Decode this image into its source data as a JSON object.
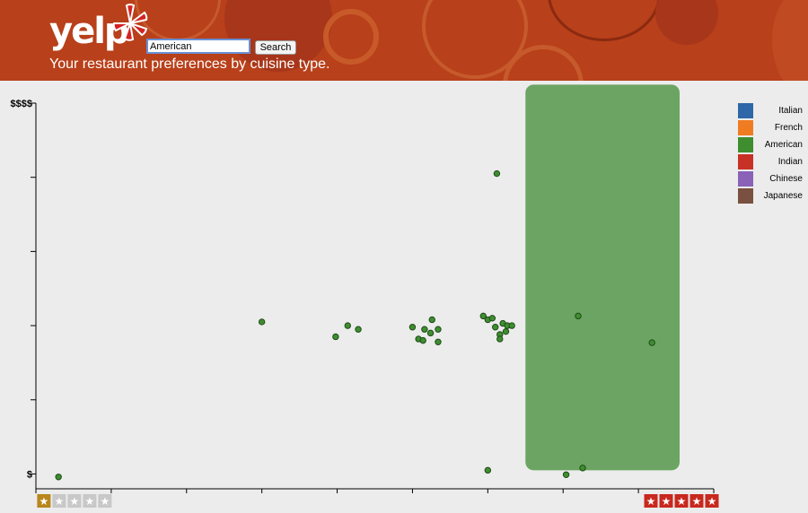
{
  "header": {
    "logo_text": "yelp",
    "search": {
      "value": "American",
      "button_label": "Search"
    },
    "tagline": "Your restaurant preferences by cuisine type."
  },
  "legend": [
    {
      "label": "Italian",
      "color": "#2e67a8"
    },
    {
      "label": "French",
      "color": "#f07c22"
    },
    {
      "label": "American",
      "color": "#3e8e30"
    },
    {
      "label": "Indian",
      "color": "#c83226"
    },
    {
      "label": "Chinese",
      "color": "#8a62b8"
    },
    {
      "label": "Japanese",
      "color": "#7a5040"
    }
  ],
  "chart_data": {
    "type": "scatter",
    "x_axis": {
      "min_rating": 1,
      "max_rating": 5,
      "range": [
        0.5,
        5.0
      ],
      "min_label_stars": 1,
      "max_label_stars": 5,
      "min_label_color": "#b8861a",
      "max_label_color": "#c8281e"
    },
    "y_axis": {
      "range": [
        0.8,
        6.0
      ],
      "tick_labels": [
        {
          "value": 1,
          "text": "$"
        },
        {
          "value": 6,
          "text": "$$$$"
        }
      ],
      "ticks": [
        1,
        2,
        3,
        4,
        5,
        6
      ]
    },
    "highlight": {
      "series": "American",
      "x_range": [
        3.75,
        5.3
      ],
      "y_range": [
        1.05,
        6.25
      ],
      "color": "#6ca563"
    },
    "series": [
      {
        "name": "American",
        "color": "#3e8e30",
        "points": [
          [
            0.65,
            0.96
          ],
          [
            2.0,
            3.05
          ],
          [
            2.49,
            2.85
          ],
          [
            2.57,
            3.0
          ],
          [
            2.64,
            2.95
          ],
          [
            3.0,
            2.98
          ],
          [
            3.04,
            2.82
          ],
          [
            3.07,
            2.8
          ],
          [
            3.08,
            2.95
          ],
          [
            3.12,
            2.9
          ],
          [
            3.13,
            3.08
          ],
          [
            3.17,
            2.95
          ],
          [
            3.17,
            2.78
          ],
          [
            3.47,
            3.13
          ],
          [
            3.5,
            3.08
          ],
          [
            3.53,
            3.1
          ],
          [
            3.55,
            2.98
          ],
          [
            3.58,
            2.88
          ],
          [
            3.58,
            2.82
          ],
          [
            3.6,
            3.03
          ],
          [
            3.62,
            2.92
          ],
          [
            3.63,
            3.0
          ],
          [
            3.66,
            3.0
          ],
          [
            3.56,
            5.05
          ],
          [
            4.1,
            3.13
          ],
          [
            4.59,
            2.77
          ],
          [
            3.5,
            1.05
          ],
          [
            4.02,
            0.99
          ],
          [
            4.13,
            1.08
          ]
        ]
      }
    ]
  }
}
